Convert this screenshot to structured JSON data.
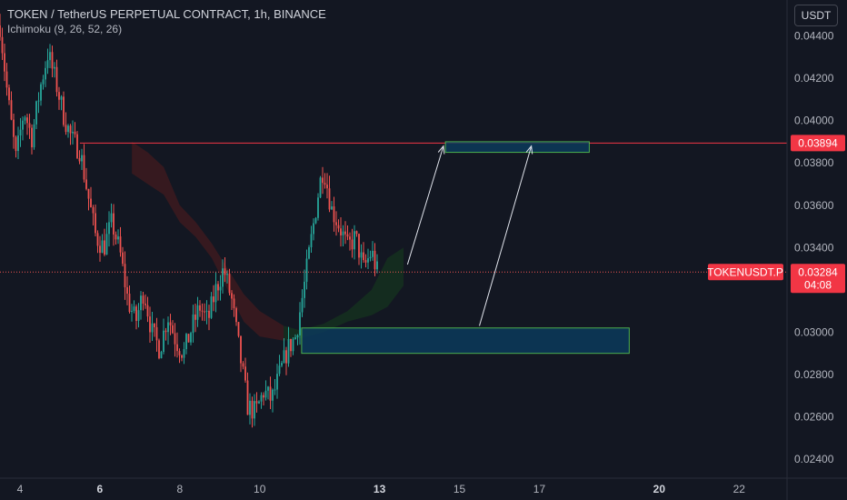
{
  "header": {
    "title": "TOKEN / TetherUS PERPETUAL CONTRACT, 1h, BINANCE",
    "indicator": "Ichimoku (9, 26, 52, 26)",
    "currency": "USDT"
  },
  "colors": {
    "background": "#131722",
    "up": "#26a69a",
    "down": "#ef5350",
    "resistance_line": "#f23645",
    "zone_fill": "#0c3a5a",
    "zone_border": "#4caf50",
    "arrow": "#e0e3eb",
    "cloud_bear": "#3d1a1f",
    "cloud_bull": "#15301f"
  },
  "chart_data": {
    "type": "candlestick",
    "x_ticks": [
      {
        "label": "4",
        "bold": false,
        "x": 4.0
      },
      {
        "label": "6",
        "bold": true,
        "x": 6.0
      },
      {
        "label": "8",
        "bold": false,
        "x": 8.0
      },
      {
        "label": "10",
        "bold": false,
        "x": 10.0
      },
      {
        "label": "13",
        "bold": true,
        "x": 13.0
      },
      {
        "label": "15",
        "bold": false,
        "x": 15.0
      },
      {
        "label": "17",
        "bold": false,
        "x": 17.0
      },
      {
        "label": "20",
        "bold": true,
        "x": 20.0
      },
      {
        "label": "22",
        "bold": false,
        "x": 22.0
      }
    ],
    "y_ticks": [
      "0.04400",
      "0.04200",
      "0.04000",
      "0.03800",
      "0.03600",
      "0.03400",
      "0.03000",
      "0.02800",
      "0.02600",
      "0.02400"
    ],
    "y_range": [
      0.0231,
      0.0457
    ],
    "x_range": [
      3.5,
      23.2
    ],
    "price_series": [
      [
        3.5,
        0.0445
      ],
      [
        3.7,
        0.041
      ],
      [
        3.9,
        0.0382
      ],
      [
        4.1,
        0.0405
      ],
      [
        4.3,
        0.0392
      ],
      [
        4.5,
        0.0415
      ],
      [
        4.7,
        0.0432
      ],
      [
        4.9,
        0.0418
      ],
      [
        5.1,
        0.0402
      ],
      [
        5.3,
        0.0391
      ],
      [
        5.5,
        0.0386
      ],
      [
        5.7,
        0.0365
      ],
      [
        5.9,
        0.0345
      ],
      [
        6.1,
        0.034
      ],
      [
        6.3,
        0.0352
      ],
      [
        6.5,
        0.0338
      ],
      [
        6.7,
        0.0315
      ],
      [
        6.9,
        0.0305
      ],
      [
        7.1,
        0.032
      ],
      [
        7.3,
        0.03
      ],
      [
        7.5,
        0.0292
      ],
      [
        7.7,
        0.0308
      ],
      [
        7.9,
        0.0296
      ],
      [
        8.1,
        0.029
      ],
      [
        8.3,
        0.0302
      ],
      [
        8.5,
        0.0312
      ],
      [
        8.7,
        0.0305
      ],
      [
        8.9,
        0.032
      ],
      [
        9.1,
        0.033
      ],
      [
        9.3,
        0.0315
      ],
      [
        9.5,
        0.029
      ],
      [
        9.7,
        0.0265
      ],
      [
        9.9,
        0.0262
      ],
      [
        10.1,
        0.0272
      ],
      [
        10.3,
        0.0268
      ],
      [
        10.5,
        0.028
      ],
      [
        10.7,
        0.0292
      ],
      [
        10.9,
        0.0298
      ],
      [
        11.1,
        0.032
      ],
      [
        11.3,
        0.0345
      ],
      [
        11.5,
        0.037
      ],
      [
        11.6,
        0.0378
      ],
      [
        11.8,
        0.0358
      ],
      [
        12.0,
        0.035
      ],
      [
        12.2,
        0.034
      ],
      [
        12.4,
        0.0345
      ],
      [
        12.6,
        0.033
      ],
      [
        12.8,
        0.0338
      ],
      [
        12.95,
        0.0328
      ]
    ],
    "cloud_bear": [
      [
        6.8,
        0.0375
      ],
      [
        7.2,
        0.037
      ],
      [
        7.6,
        0.0365
      ],
      [
        8.0,
        0.0352
      ],
      [
        8.4,
        0.0345
      ],
      [
        8.8,
        0.0335
      ],
      [
        9.2,
        0.032
      ],
      [
        9.6,
        0.0305
      ],
      [
        10.0,
        0.0298
      ],
      [
        10.6,
        0.0296
      ],
      [
        10.6,
        0.0303
      ],
      [
        10.0,
        0.031
      ],
      [
        9.6,
        0.0318
      ],
      [
        9.2,
        0.033
      ],
      [
        8.8,
        0.0342
      ],
      [
        8.4,
        0.0352
      ],
      [
        8.0,
        0.036
      ],
      [
        7.6,
        0.0378
      ],
      [
        7.2,
        0.0385
      ],
      [
        6.8,
        0.039
      ]
    ],
    "cloud_bull": [
      [
        10.6,
        0.0296
      ],
      [
        11.0,
        0.0297
      ],
      [
        11.6,
        0.03
      ],
      [
        12.2,
        0.0305
      ],
      [
        12.8,
        0.0308
      ],
      [
        13.2,
        0.0312
      ],
      [
        13.6,
        0.0322
      ],
      [
        13.6,
        0.034
      ],
      [
        13.2,
        0.0335
      ],
      [
        12.8,
        0.032
      ],
      [
        12.2,
        0.031
      ],
      [
        11.6,
        0.0304
      ],
      [
        11.0,
        0.0301
      ],
      [
        10.6,
        0.0303
      ]
    ],
    "resistance_level": 0.03894,
    "current_price": 0.03284,
    "current_symbol": "TOKENUSDT.P",
    "countdown": "04:08",
    "resistance_label": "0.03894",
    "current_label": "0.03284",
    "zones": [
      {
        "x1": 14.65,
        "x2": 18.25,
        "y_top": 0.039,
        "y_bottom": 0.0385
      },
      {
        "x1": 11.05,
        "x2": 19.25,
        "y_top": 0.0302,
        "y_bottom": 0.029
      }
    ],
    "arrows": [
      {
        "from": [
          13.7,
          0.0332
        ],
        "to": [
          14.6,
          0.0388
        ]
      },
      {
        "from": [
          15.5,
          0.0303
        ],
        "to": [
          16.8,
          0.0388
        ]
      }
    ]
  }
}
